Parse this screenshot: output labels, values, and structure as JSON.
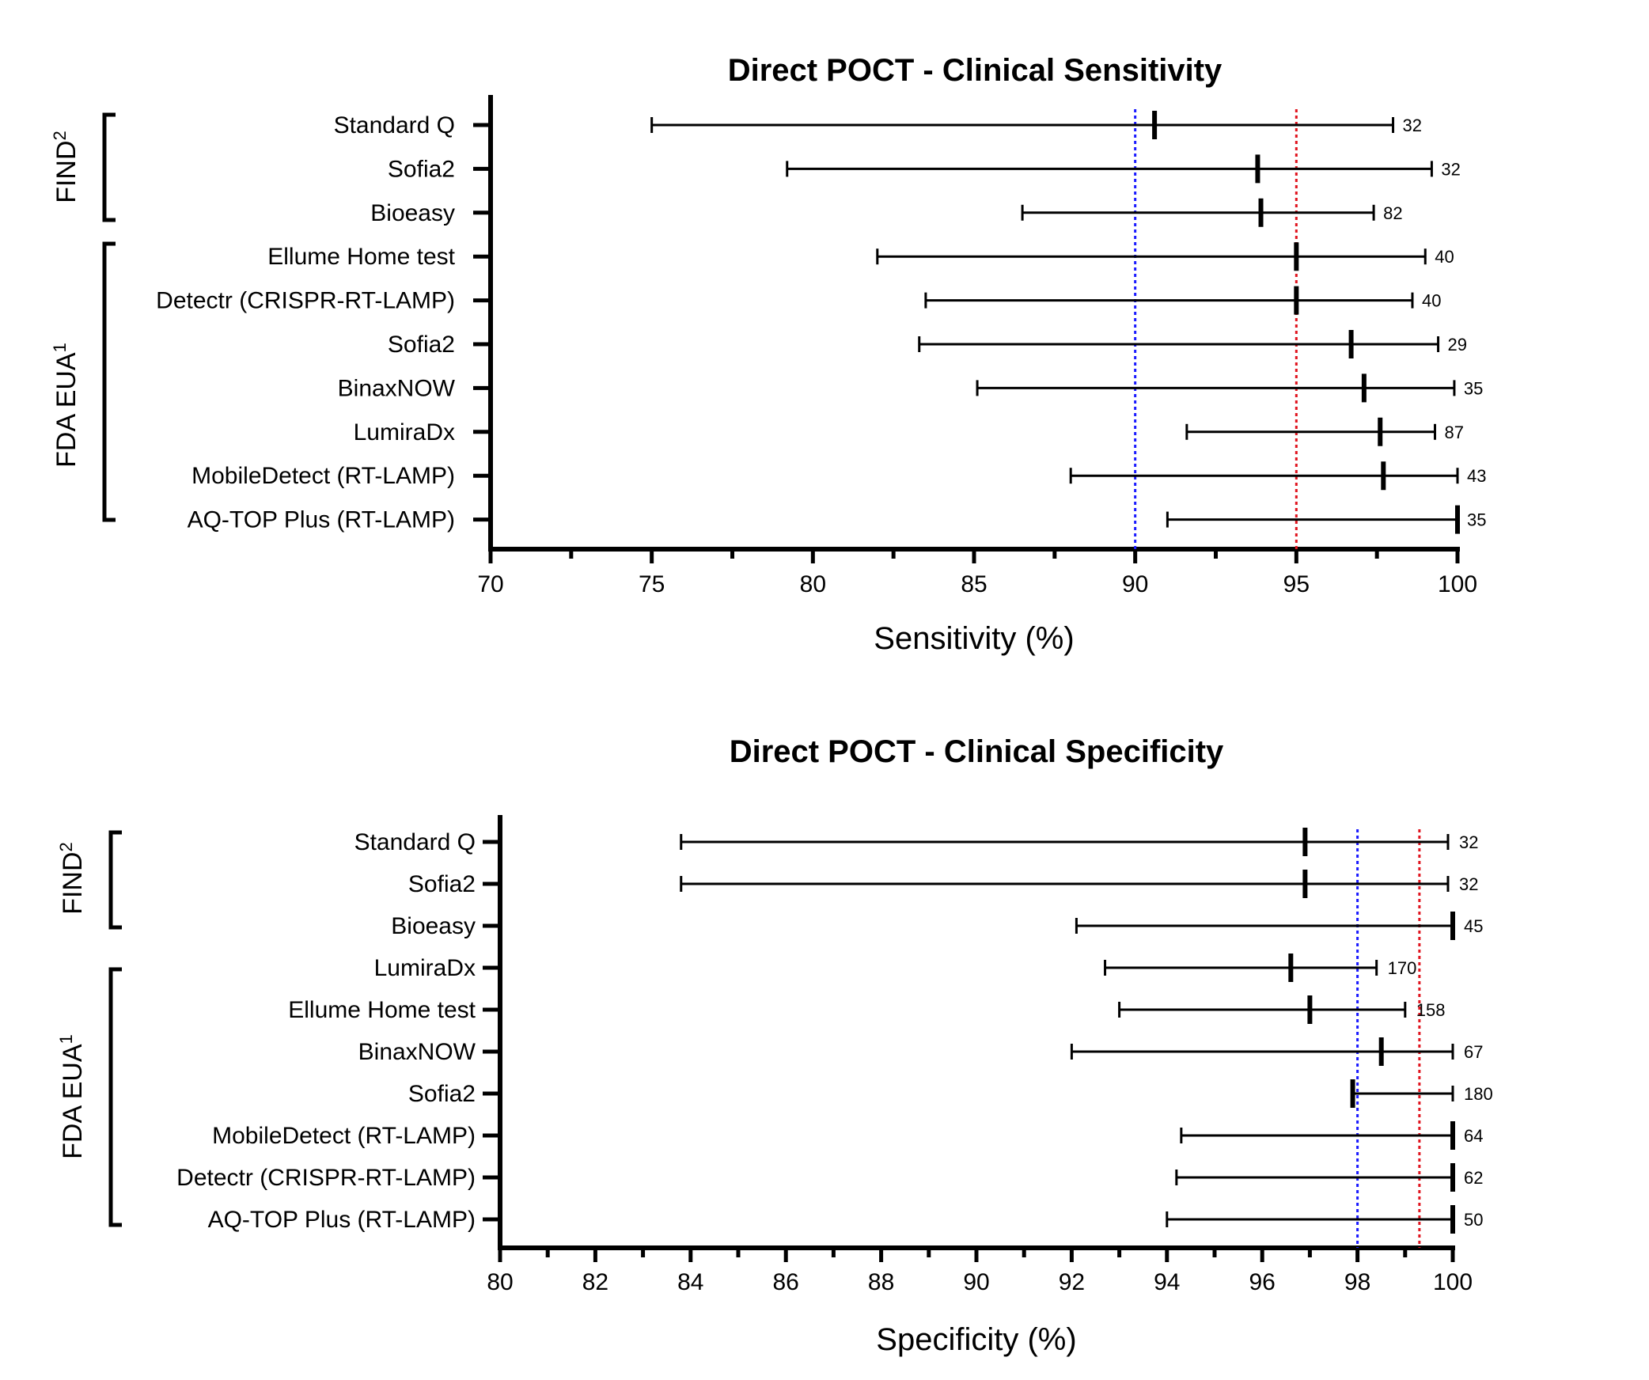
{
  "chart_data": [
    {
      "type": "forest",
      "title": "Direct POCT - Clinical Sensitivity",
      "xlabel": "Sensitivity (%)",
      "xlim": [
        70,
        100
      ],
      "xticks": [
        "70",
        "75",
        "80",
        "85",
        "90",
        "95",
        "100"
      ],
      "reference_lines": [
        {
          "value": 90,
          "color": "#1a1aff",
          "style": "dotted"
        },
        {
          "value": 95,
          "color": "#e0141e",
          "style": "dotted"
        }
      ],
      "groups": [
        {
          "label": "FIND",
          "superscript": "2",
          "rows": [
            0,
            2
          ]
        },
        {
          "label": "FDA EUA",
          "superscript": "1",
          "rows": [
            3,
            9
          ]
        }
      ],
      "rows": [
        {
          "label": "Standard Q",
          "point": 90.6,
          "low": 75.0,
          "high": 98.0,
          "n": "32"
        },
        {
          "label": "Sofia2",
          "point": 93.8,
          "low": 79.2,
          "high": 99.2,
          "n": "32"
        },
        {
          "label": "Bioeasy",
          "point": 93.9,
          "low": 86.5,
          "high": 97.4,
          "n": "82"
        },
        {
          "label": "Ellume Home test",
          "point": 95.0,
          "low": 82.0,
          "high": 99.0,
          "n": "40"
        },
        {
          "label": "Detectr (CRISPR-RT-LAMP)",
          "point": 95.0,
          "low": 83.5,
          "high": 98.6,
          "n": "40"
        },
        {
          "label": "Sofia2",
          "point": 96.7,
          "low": 83.3,
          "high": 99.4,
          "n": "29"
        },
        {
          "label": "BinaxNOW",
          "point": 97.1,
          "low": 85.1,
          "high": 99.9,
          "n": "35"
        },
        {
          "label": "LumiraDx",
          "point": 97.6,
          "low": 91.6,
          "high": 99.3,
          "n": "87"
        },
        {
          "label": "MobileDetect (RT-LAMP)",
          "point": 97.7,
          "low": 88.0,
          "high": 100.0,
          "n": "43"
        },
        {
          "label": "AQ-TOP Plus (RT-LAMP)",
          "point": 100.0,
          "low": 91.0,
          "high": 100.0,
          "n": "35"
        }
      ]
    },
    {
      "type": "forest",
      "title": "Direct POCT - Clinical Specificity",
      "xlabel": "Specificity (%)",
      "xlim": [
        80,
        100
      ],
      "xticks": [
        "80",
        "82",
        "84",
        "86",
        "88",
        "90",
        "92",
        "94",
        "96",
        "98",
        "100"
      ],
      "reference_lines": [
        {
          "value": 98,
          "color": "#1a1aff",
          "style": "dotted"
        },
        {
          "value": 99.3,
          "color": "#e0141e",
          "style": "dotted"
        }
      ],
      "groups": [
        {
          "label": "FIND",
          "superscript": "2",
          "rows": [
            0,
            2
          ]
        },
        {
          "label": "FDA EUA",
          "superscript": "1",
          "rows": [
            3,
            9
          ]
        }
      ],
      "rows": [
        {
          "label": "Standard Q",
          "point": 96.9,
          "low": 83.8,
          "high": 99.9,
          "n": "32"
        },
        {
          "label": "Sofia2",
          "point": 96.9,
          "low": 83.8,
          "high": 99.9,
          "n": "32"
        },
        {
          "label": "Bioeasy",
          "point": 100.0,
          "low": 92.1,
          "high": 100.0,
          "n": "45"
        },
        {
          "label": "LumiraDx",
          "point": 96.6,
          "low": 92.7,
          "high": 98.4,
          "n": "170"
        },
        {
          "label": "Ellume Home test",
          "point": 97.0,
          "low": 93.0,
          "high": 99.0,
          "n": "158"
        },
        {
          "label": "BinaxNOW",
          "point": 98.5,
          "low": 92.0,
          "high": 100.0,
          "n": "67"
        },
        {
          "label": "Sofia2",
          "point": 97.9,
          "low": 97.9,
          "high": 100.0,
          "n": "180"
        },
        {
          "label": "MobileDetect (RT-LAMP)",
          "point": 100.0,
          "low": 94.3,
          "high": 100.0,
          "n": "64"
        },
        {
          "label": "Detectr (CRISPR-RT-LAMP)",
          "point": 100.0,
          "low": 94.2,
          "high": 100.0,
          "n": "62"
        },
        {
          "label": "AQ-TOP Plus (RT-LAMP)",
          "point": 100.0,
          "low": 94.0,
          "high": 100.0,
          "n": "50"
        }
      ]
    }
  ]
}
